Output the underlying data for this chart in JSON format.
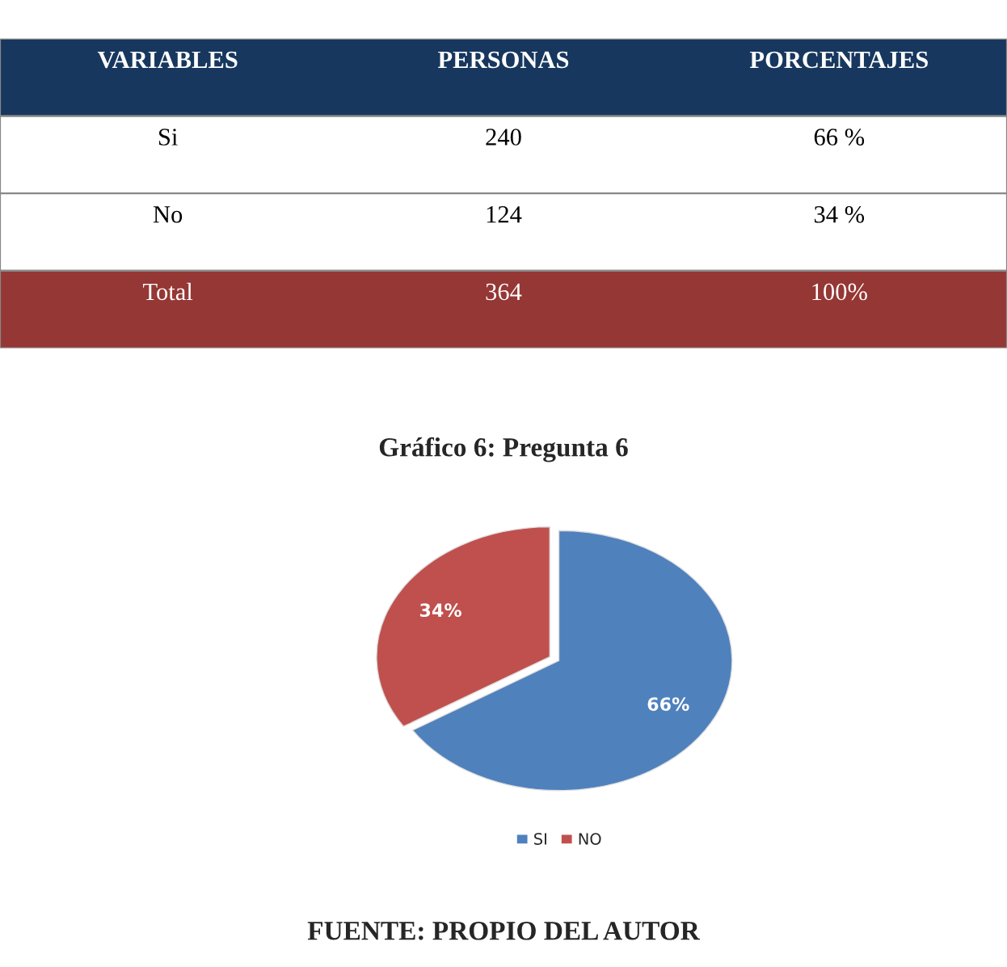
{
  "chart_data": [
    {
      "type": "other",
      "colors": [
        "#17375e",
        "#ffffff",
        "#ffffff",
        "#953735"
      ],
      "annotations": [
        "VARIABLES",
        "PERSONAS",
        "PORCENTAJES",
        "Si",
        "240",
        "66 %",
        "No",
        "124",
        "34 %",
        "Total",
        "364",
        "100%"
      ]
    },
    {
      "type": "pie",
      "title": "Gráfico 6: Pregunta 6",
      "categories": [
        "SI",
        "NO"
      ],
      "values": [
        66,
        34
      ],
      "colors": [
        "#4f81bd",
        "#c0504d"
      ],
      "value_labels": [
        "66%",
        "34%"
      ],
      "legend": "bottom",
      "annotations": [
        "FUENTE: PROPIO DEL AUTOR"
      ]
    }
  ]
}
